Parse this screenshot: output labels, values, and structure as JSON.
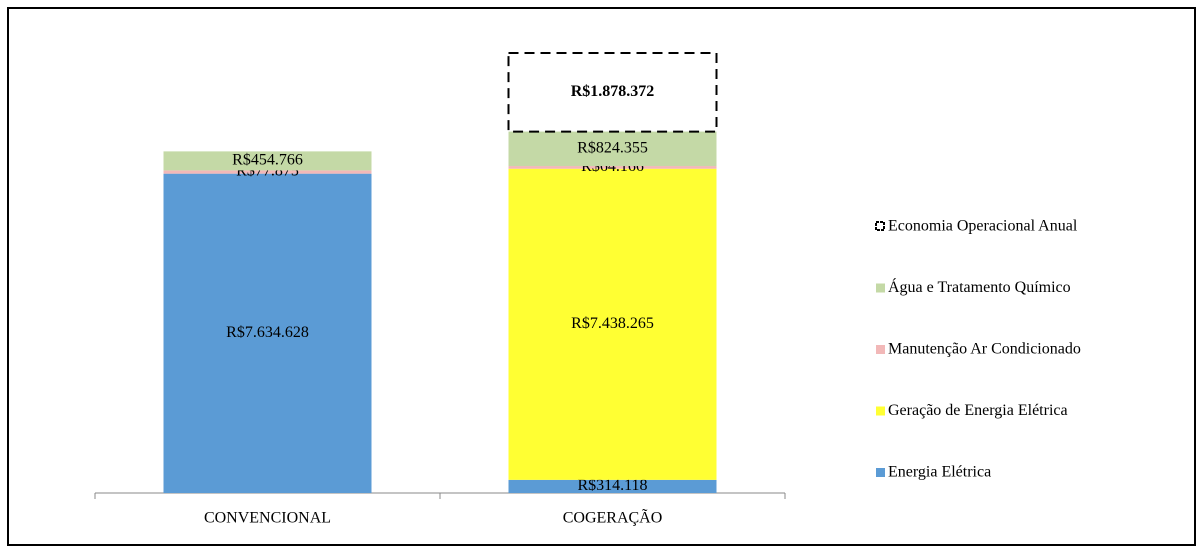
{
  "chart_data": {
    "type": "stacked_bar",
    "categories": [
      "CONVENCIONAL",
      "COGERAÇÃO"
    ],
    "series": [
      {
        "name": "Energia Elétrica",
        "color": "#5b9bd5",
        "values": [
          7634628,
          314118
        ],
        "value_labels": [
          "R$7.634.628",
          "R$314.118"
        ]
      },
      {
        "name": "Geração de Energia Elétrica",
        "color": "#ffff33",
        "values": [
          null,
          7438265
        ],
        "value_labels": [
          null,
          "R$7.438.265"
        ]
      },
      {
        "name": "Manutenção Ar Condicionado",
        "color": "#f2b8b8",
        "values": [
          77875,
          64166
        ],
        "value_labels": [
          "R$77.875",
          "R$64.166"
        ]
      },
      {
        "name": "Água e Tratamento Químico",
        "color": "#c4d9a6",
        "values": [
          454766,
          824355
        ],
        "value_labels": [
          "R$454.766",
          "R$824.355"
        ]
      },
      {
        "name": "Economia Operacional Anual",
        "color": "#000000",
        "dashed": true,
        "values": [
          null,
          1878372
        ],
        "value_labels": [
          null,
          "R$1.878.372"
        ]
      }
    ],
    "legend": "right"
  }
}
